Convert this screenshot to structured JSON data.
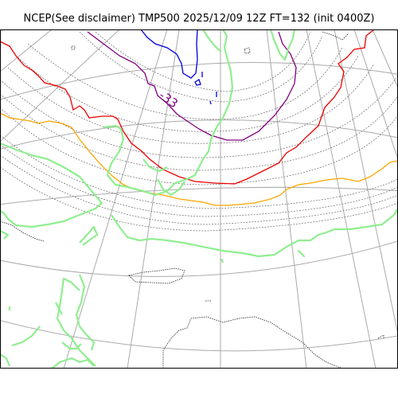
{
  "title": "NCEP(See disclaimer) TMP500 2025/12/09 12Z FT=132 (init 0400Z)",
  "contour_label": "-33",
  "colors": {
    "coastline": "#222222",
    "graticule": "#aaaaaa",
    "isotherm_grey": "#666666",
    "contour_blue": "#0000dd",
    "contour_purple": "#800080",
    "contour_red": "#ee0000",
    "contour_orange": "#ffa500",
    "contour_green": "#90ee90"
  }
}
